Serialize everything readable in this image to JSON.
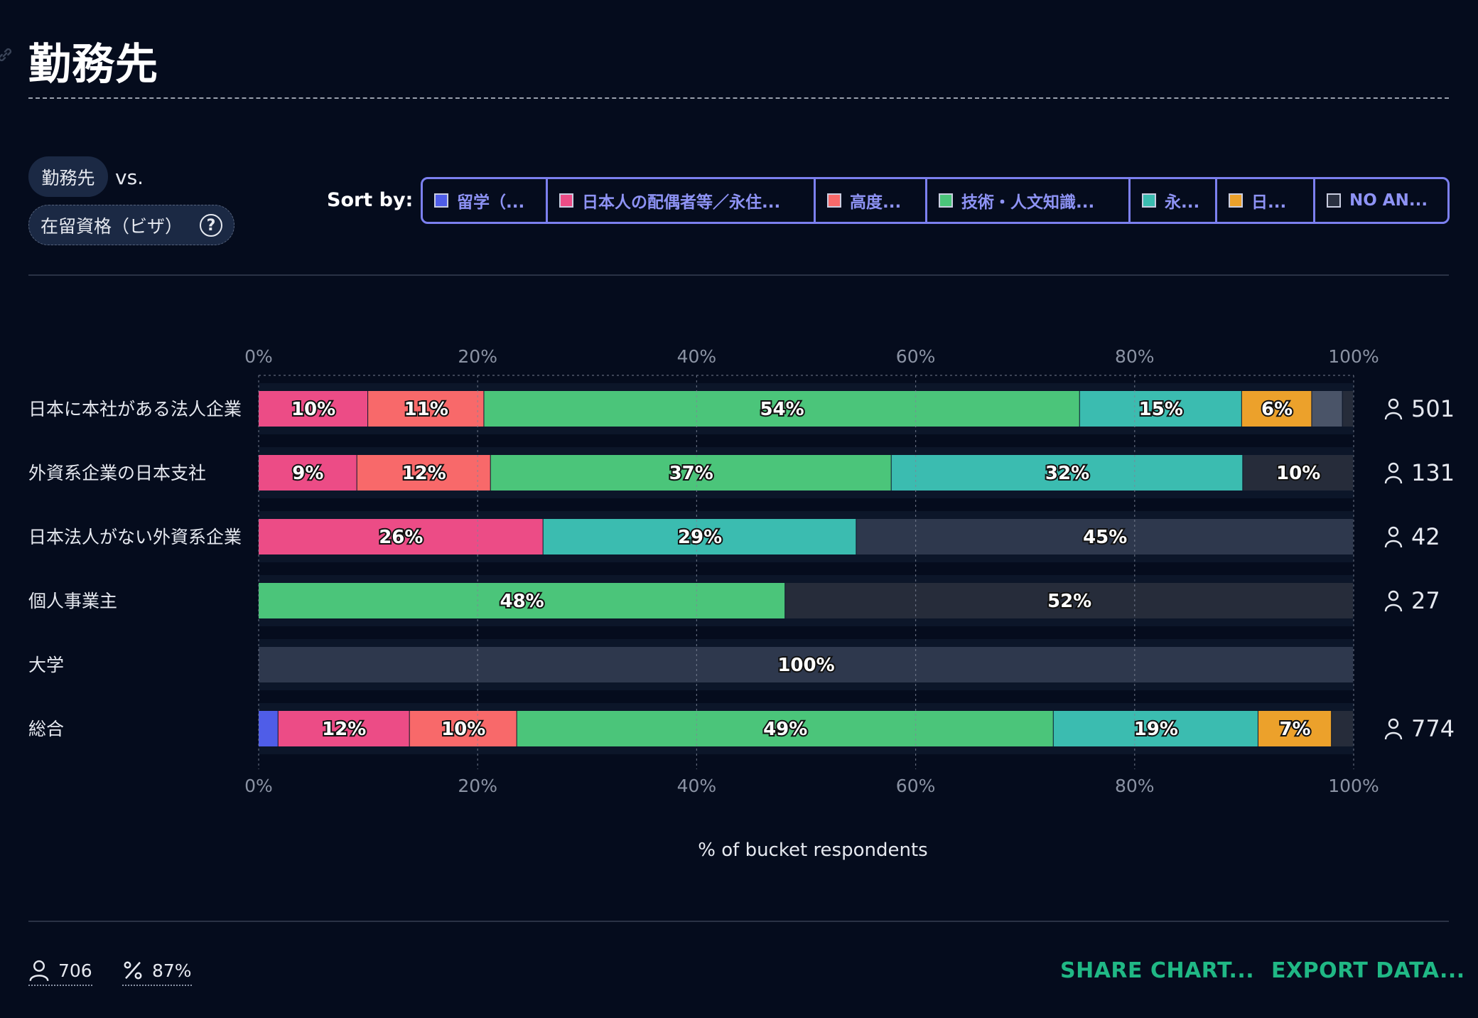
{
  "page": {
    "title": "勤務先",
    "pill_a": "勤務先",
    "vs": "vs.",
    "pill_b": "在留資格（ビザ）",
    "help_glyph": "?",
    "sort_by_label": "Sort by:",
    "sort_items": [
      {
        "label": "留学（...",
        "color": "#4f5de8"
      },
      {
        "label": "日本人の配偶者等／永住...",
        "color": "#ec4c86"
      },
      {
        "label": "高度...",
        "color": "#f8696a"
      },
      {
        "label": "技術・人文知識...",
        "color": "#4bc57a"
      },
      {
        "label": "永...",
        "color": "#3bbcb0"
      },
      {
        "label": "日...",
        "color": "#eca12b"
      },
      {
        "label": "NO AN...",
        "color": "#2a3040"
      }
    ],
    "footer": {
      "respondents": "706",
      "percent": "87%",
      "share": "SHARE CHART...",
      "export": "EXPORT DATA..."
    }
  },
  "chart_data": {
    "type": "bar",
    "orientation": "horizontal",
    "stacked": true,
    "xlabel": "% of bucket respondents",
    "xlim": [
      0,
      100
    ],
    "x_ticks": [
      "0%",
      "20%",
      "40%",
      "60%",
      "80%",
      "100%"
    ],
    "grid": true,
    "categories": [
      "日本に本社がある法人企業",
      "外資系企業の日本支社",
      "日本法人がない外資系企業",
      "個人事業主",
      "大学",
      "総合"
    ],
    "counts": [
      "501",
      "131",
      "42",
      "27",
      "",
      "774"
    ],
    "series": [
      {
        "color": "#4f5de8",
        "values": [
          0,
          0,
          0,
          0,
          0,
          1.8
        ]
      },
      {
        "color": "#ec4c86",
        "values": [
          10,
          9,
          26,
          0,
          0,
          12
        ]
      },
      {
        "color": "#f8696a",
        "values": [
          10.6,
          12.2,
          0,
          0,
          0,
          9.8
        ]
      },
      {
        "color": "#4bc57a",
        "values": [
          54.4,
          36.6,
          0,
          48.1,
          0,
          49
        ]
      },
      {
        "color": "#3bbcb0",
        "values": [
          14.8,
          32.1,
          28.6,
          0,
          0,
          18.7
        ]
      },
      {
        "color": "#eca12b",
        "values": [
          6.4,
          0,
          0,
          0,
          0,
          6.7
        ]
      },
      {
        "color": "#4a5468",
        "values": [
          2.8,
          0,
          0,
          0,
          0,
          0
        ]
      },
      {
        "color": "#262c3a",
        "values": [
          1,
          10.1,
          0,
          51.9,
          0,
          2
        ]
      },
      {
        "color": "#2e384d",
        "values": [
          0,
          0,
          45.4,
          0,
          100,
          0
        ]
      }
    ],
    "data_labels": [
      [
        "",
        "10%",
        "11%",
        "54%",
        "15%",
        "6%",
        "",
        "",
        ""
      ],
      [
        "",
        "9%",
        "12%",
        "37%",
        "32%",
        "",
        "",
        "10%",
        ""
      ],
      [
        "",
        "26%",
        "",
        "",
        "29%",
        "",
        "",
        "",
        "45%"
      ],
      [
        "",
        "",
        "",
        "48%",
        "",
        "",
        "",
        "52%",
        ""
      ],
      [
        "",
        "",
        "",
        "",
        "",
        "",
        "",
        "",
        "100%"
      ],
      [
        "",
        "12%",
        "10%",
        "49%",
        "19%",
        "7%",
        "",
        "",
        ""
      ]
    ]
  }
}
